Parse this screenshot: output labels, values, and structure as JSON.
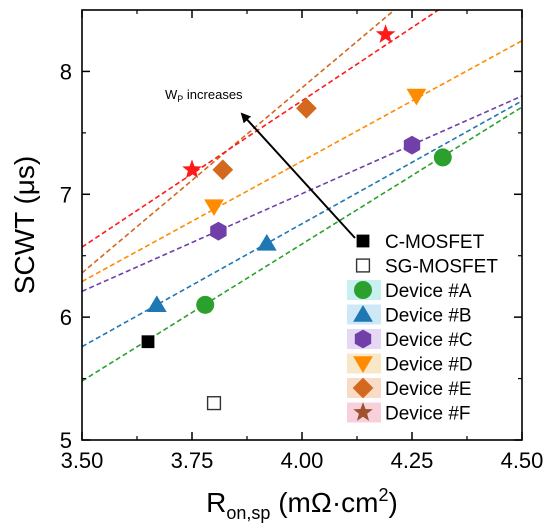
{
  "chart_data": {
    "type": "scatter",
    "title": "",
    "xlabel": {
      "main": "R",
      "sub": "on,sp",
      "rest": " (mΩ·cm",
      "sup": "2",
      "close": ")"
    },
    "ylabel": "SCWT (μs)",
    "xlim": [
      3.5,
      4.5
    ],
    "ylim": [
      5,
      8.5
    ],
    "xticks": [
      "3.50",
      "3.75",
      "4.00",
      "4.25",
      "4.50"
    ],
    "yticks": [
      "5",
      "6",
      "7",
      "8"
    ],
    "grid": false,
    "legend_position": "bottom-right",
    "annotation": {
      "main": "W",
      "sub": "P",
      "rest": " increases"
    },
    "series": [
      {
        "name": "C-MOSFET",
        "marker": "square",
        "filled": true,
        "color": "#000000",
        "points": [
          [
            3.65,
            5.8
          ]
        ]
      },
      {
        "name": "SG-MOSFET",
        "marker": "square",
        "filled": false,
        "color": "#000000",
        "points": [
          [
            3.8,
            5.3
          ]
        ]
      },
      {
        "name": "Device #A",
        "marker": "circle",
        "filled": true,
        "color": "#2ca02c",
        "highlight": "#c8f0f0",
        "points": [
          [
            3.78,
            6.1
          ],
          [
            4.32,
            7.3
          ]
        ],
        "fit": [
          [
            3.5,
            5.48
          ],
          [
            4.5,
            7.71
          ]
        ]
      },
      {
        "name": "Device #B",
        "marker": "triangle-up",
        "filled": true,
        "color": "#1f77b4",
        "highlight": "#cfe8f8",
        "points": [
          [
            3.67,
            6.1
          ],
          [
            3.92,
            6.6
          ]
        ],
        "fit": [
          [
            3.5,
            5.76
          ],
          [
            4.5,
            7.76
          ]
        ]
      },
      {
        "name": "Device #C",
        "marker": "hexagon",
        "filled": true,
        "color": "#7040a8",
        "highlight": "#e6d8f2",
        "points": [
          [
            3.81,
            6.7
          ],
          [
            4.25,
            7.4
          ]
        ],
        "fit": [
          [
            3.5,
            6.21
          ],
          [
            4.5,
            7.8
          ]
        ]
      },
      {
        "name": "Device #D",
        "marker": "triangle-down",
        "filled": true,
        "color": "#ff8c00",
        "highlight": "#f8e8c8",
        "points": [
          [
            3.8,
            6.9
          ],
          [
            4.26,
            7.8
          ]
        ],
        "fit": [
          [
            3.5,
            6.29
          ],
          [
            4.5,
            8.25
          ]
        ]
      },
      {
        "name": "Device #E",
        "marker": "diamond",
        "filled": true,
        "color": "#d2691e",
        "highlight": "#f8dcc8",
        "points": [
          [
            3.82,
            7.2
          ],
          [
            4.01,
            7.7
          ]
        ],
        "fit": [
          [
            3.5,
            6.36
          ],
          [
            4.21,
            8.5
          ]
        ]
      },
      {
        "name": "Device #F",
        "marker": "star",
        "filled": true,
        "color": "#ff1a1a",
        "legend_color": "#a0522d",
        "highlight": "#f8d0dc",
        "points": [
          [
            3.75,
            7.2
          ],
          [
            4.19,
            8.3
          ]
        ],
        "fit": [
          [
            3.5,
            6.57
          ],
          [
            4.31,
            8.5
          ]
        ]
      }
    ]
  }
}
